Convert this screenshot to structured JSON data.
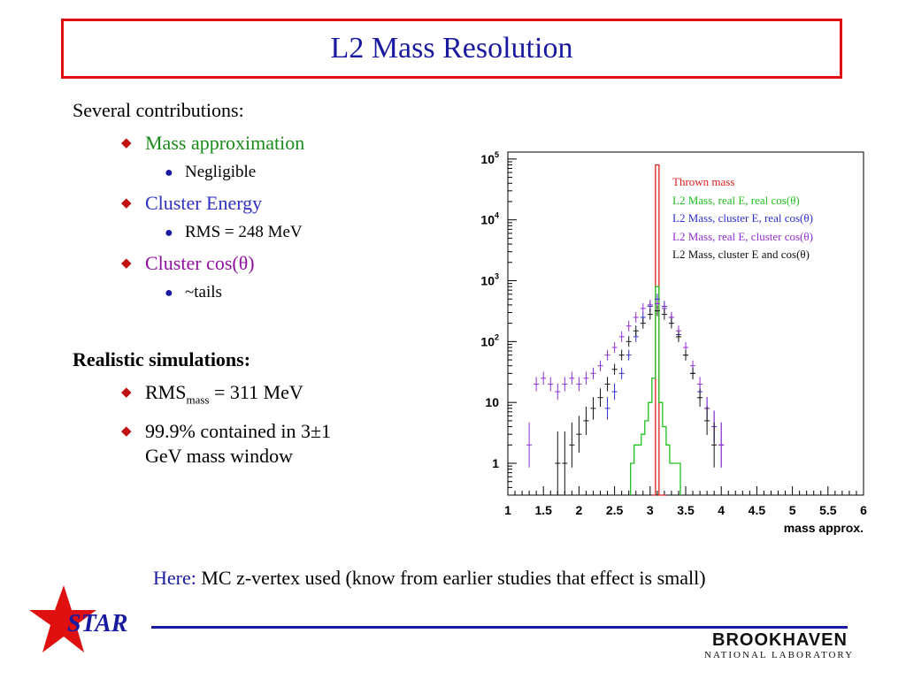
{
  "title": "L2 Mass Resolution",
  "bullets": {
    "intro": "Several contributions:",
    "items": [
      {
        "label": "Mass approximation",
        "color": "#1a8a1a",
        "sub": "Negligible"
      },
      {
        "label": "Cluster Energy",
        "color": "#3030c0",
        "sub": "RMS = 248 MeV"
      },
      {
        "label": "Cluster cos(θ)",
        "color": "#9010a0",
        "sub": "~tails"
      }
    ],
    "realistic_heading": "Realistic simulations:",
    "rms_prefix": "RMS",
    "rms_subscript": "mass",
    "rms_suffix": " = 311 MeV",
    "contained_line1": "99.9% contained in 3±1",
    "contained_line2": "GeV mass window"
  },
  "footer_note": {
    "here": "Here:",
    "text": " MC z-vertex used (know from earlier studies that effect is small)"
  },
  "logo": {
    "star": "STAR",
    "bnl_name": "BROOKHAVEN",
    "bnl_sub": "NATIONAL LABORATORY"
  },
  "colors": {
    "title": "#1a1aa0",
    "title_border": "#e01010",
    "bullet_diamond": "#c01010",
    "bullet_dot": "#1a1aa0"
  },
  "chart_data": {
    "type": "line",
    "xlabel": "mass approx.",
    "ylabel": "",
    "xlim": [
      1,
      6
    ],
    "ylim": [
      0.3,
      130000
    ],
    "yscale": "log",
    "x_ticks": [
      "1",
      "1.5",
      "2",
      "2.5",
      "3",
      "3.5",
      "4",
      "4.5",
      "5",
      "5.5",
      "6"
    ],
    "y_ticks": [
      {
        "label": "1",
        "value": 1
      },
      {
        "label": "10",
        "value": 10
      },
      {
        "label": "10",
        "sup": "2",
        "value": 100
      },
      {
        "label": "10",
        "sup": "3",
        "value": 1000
      },
      {
        "label": "10",
        "sup": "4",
        "value": 10000
      },
      {
        "label": "10",
        "sup": "5",
        "value": 100000
      }
    ],
    "legend_position": "top-right",
    "series": [
      {
        "name": "Thrown mass",
        "color": "#e02020",
        "style": "histogram",
        "x": [
          3.05,
          3.1,
          3.15,
          3.2
        ],
        "y": [
          0.0,
          80000,
          0.0,
          0.0
        ]
      },
      {
        "name": "L2 Mass, real E, real cos(θ)",
        "color": "#20c020",
        "style": "histogram",
        "x": [
          2.75,
          2.8,
          2.85,
          2.9,
          2.95,
          3.0,
          3.05,
          3.1,
          3.15,
          3.2,
          3.25,
          3.3,
          3.35,
          3.4
        ],
        "y": [
          1,
          2,
          2,
          3,
          5,
          10,
          25,
          800,
          10,
          4,
          2,
          1,
          1,
          1
        ]
      },
      {
        "name": "L2 Mass, cluster E, real cos(θ)",
        "color": "#3030d0",
        "style": "errorbars",
        "x": [
          2.4,
          2.5,
          2.6,
          2.7,
          2.8,
          2.9,
          3.0,
          3.1,
          3.2,
          3.3,
          3.4,
          3.5,
          3.6,
          3.7,
          3.8,
          3.9,
          4.0
        ],
        "y": [
          8,
          15,
          30,
          60,
          120,
          250,
          380,
          500,
          380,
          250,
          130,
          60,
          30,
          15,
          8,
          4,
          2
        ]
      },
      {
        "name": "L2 Mass, real E, cluster cos(θ)",
        "color": "#9030d0",
        "style": "errorbars",
        "x": [
          1.3,
          1.4,
          1.5,
          1.6,
          1.7,
          1.8,
          1.9,
          2.0,
          2.1,
          2.2,
          2.3,
          2.4,
          2.5,
          2.6,
          2.7,
          2.8,
          2.9,
          3.0,
          3.1,
          3.2,
          3.3,
          3.4,
          3.5,
          3.6,
          3.7,
          3.8,
          3.9,
          4.0
        ],
        "y": [
          2,
          20,
          25,
          20,
          15,
          20,
          25,
          20,
          25,
          30,
          40,
          60,
          80,
          120,
          180,
          250,
          350,
          400,
          420,
          350,
          250,
          150,
          80,
          40,
          20,
          8,
          4,
          2
        ]
      },
      {
        "name": "L2 Mass, cluster E and cos(θ)",
        "color": "#111111",
        "style": "errorbars",
        "x": [
          1.7,
          1.8,
          1.9,
          2.0,
          2.1,
          2.2,
          2.3,
          2.4,
          2.5,
          2.6,
          2.7,
          2.8,
          2.9,
          3.0,
          3.1,
          3.2,
          3.3,
          3.4,
          3.5,
          3.6,
          3.7,
          3.8,
          3.9
        ],
        "y": [
          1,
          1,
          2,
          3,
          5,
          8,
          12,
          20,
          35,
          60,
          100,
          150,
          200,
          280,
          320,
          280,
          200,
          120,
          60,
          30,
          12,
          5,
          2
        ]
      }
    ]
  }
}
